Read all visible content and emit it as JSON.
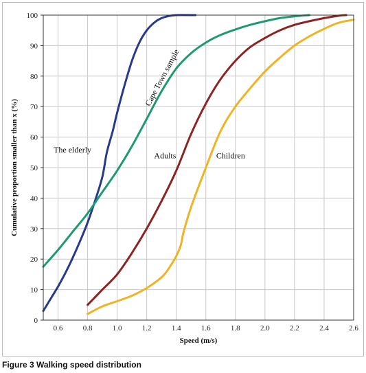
{
  "caption": "Figure 3 Walking speed distribution",
  "chart_data": {
    "type": "line",
    "title": "",
    "xlabel": "Speed (m/s)",
    "ylabel": "Cumulative proportion smaller than x (%)",
    "xlim": [
      0.5,
      2.6
    ],
    "ylim": [
      0,
      100
    ],
    "xticks": [
      "0.6",
      "0.8",
      "1.0",
      "1.2",
      "1.4",
      "1.6",
      "1.8",
      "2.0",
      "2.2",
      "2.4",
      "2.6"
    ],
    "yticks": [
      "0",
      "10",
      "20",
      "30",
      "40",
      "50",
      "60",
      "70",
      "80",
      "90",
      "100"
    ],
    "grid": true,
    "series": [
      {
        "name": "The elderly",
        "color": "#273a8c",
        "points": [
          [
            0.5,
            3
          ],
          [
            0.55,
            7
          ],
          [
            0.6,
            11
          ],
          [
            0.65,
            15.5
          ],
          [
            0.7,
            20.5
          ],
          [
            0.75,
            26
          ],
          [
            0.8,
            32
          ],
          [
            0.85,
            39
          ],
          [
            0.9,
            47
          ],
          [
            0.93,
            55
          ],
          [
            0.97,
            62
          ],
          [
            1.0,
            68
          ],
          [
            1.05,
            77
          ],
          [
            1.1,
            85
          ],
          [
            1.15,
            91
          ],
          [
            1.2,
            95
          ],
          [
            1.25,
            97.5
          ],
          [
            1.3,
            99
          ],
          [
            1.35,
            99.7
          ],
          [
            1.4,
            100
          ],
          [
            1.53,
            100
          ]
        ],
        "label_pos": [
          0.57,
          55
        ]
      },
      {
        "name": "Cape Town sample",
        "color": "#1e9a70",
        "points": [
          [
            0.5,
            17.5
          ],
          [
            0.6,
            23
          ],
          [
            0.7,
            29
          ],
          [
            0.8,
            35
          ],
          [
            0.9,
            42
          ],
          [
            1.0,
            49
          ],
          [
            1.1,
            57
          ],
          [
            1.2,
            66
          ],
          [
            1.3,
            75
          ],
          [
            1.4,
            82.5
          ],
          [
            1.5,
            87.5
          ],
          [
            1.6,
            91
          ],
          [
            1.7,
            93.5
          ],
          [
            1.8,
            95.3
          ],
          [
            1.9,
            96.8
          ],
          [
            2.0,
            98
          ],
          [
            2.1,
            99
          ],
          [
            2.2,
            99.6
          ],
          [
            2.3,
            100
          ]
        ],
        "label_pos": [
          1.22,
          70
        ],
        "label_angle": -62
      },
      {
        "name": "Adults",
        "color": "#8b2422",
        "points": [
          [
            0.8,
            5
          ],
          [
            0.9,
            10
          ],
          [
            1.0,
            15
          ],
          [
            1.1,
            22
          ],
          [
            1.2,
            30
          ],
          [
            1.3,
            39
          ],
          [
            1.4,
            49
          ],
          [
            1.5,
            61
          ],
          [
            1.6,
            71
          ],
          [
            1.7,
            79
          ],
          [
            1.8,
            85
          ],
          [
            1.9,
            89.5
          ],
          [
            2.0,
            92.5
          ],
          [
            2.1,
            95
          ],
          [
            2.2,
            96.8
          ],
          [
            2.3,
            98
          ],
          [
            2.4,
            99
          ],
          [
            2.5,
            99.8
          ],
          [
            2.55,
            100
          ]
        ],
        "label_pos": [
          1.25,
          53
        ]
      },
      {
        "name": "Children",
        "color": "#f0b323",
        "points": [
          [
            0.8,
            2
          ],
          [
            0.9,
            4.5
          ],
          [
            1.0,
            6.2
          ],
          [
            1.1,
            8
          ],
          [
            1.2,
            10.5
          ],
          [
            1.3,
            14
          ],
          [
            1.35,
            17
          ],
          [
            1.4,
            21
          ],
          [
            1.43,
            24.5
          ],
          [
            1.45,
            29
          ],
          [
            1.5,
            37
          ],
          [
            1.6,
            50
          ],
          [
            1.7,
            62
          ],
          [
            1.8,
            70
          ],
          [
            1.9,
            76
          ],
          [
            2.0,
            81.5
          ],
          [
            2.1,
            86
          ],
          [
            2.2,
            90
          ],
          [
            2.3,
            93
          ],
          [
            2.4,
            95.5
          ],
          [
            2.5,
            97.5
          ],
          [
            2.6,
            98.5
          ]
        ],
        "label_pos": [
          1.67,
          53
        ]
      }
    ]
  }
}
